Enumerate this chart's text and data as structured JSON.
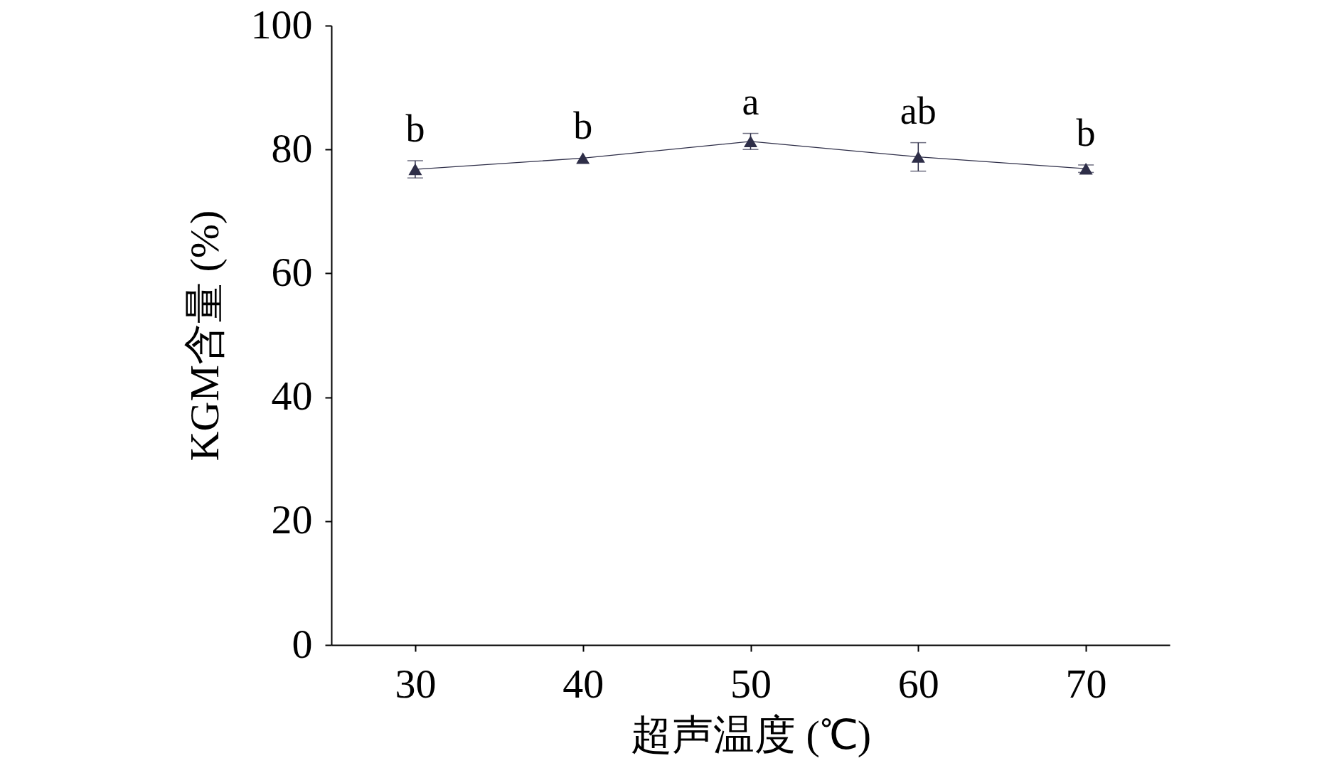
{
  "chart_data": {
    "type": "line",
    "xlabel": "超声温度 (℃)",
    "ylabel": "KGM含量 (%)",
    "x": [
      30,
      40,
      50,
      60,
      70
    ],
    "series": [
      {
        "color": "#2e2e48",
        "values": [
          76.8,
          78.6,
          81.3,
          78.8,
          76.9
        ],
        "errors": [
          1.4,
          null,
          1.3,
          2.3,
          0.6
        ]
      }
    ],
    "xlim": [
      25,
      75
    ],
    "xticks": [
      30,
      40,
      50,
      60,
      70
    ],
    "ylim": [
      0,
      100
    ],
    "yticks": [
      0,
      20,
      40,
      60,
      80,
      100
    ],
    "marker": "triangle",
    "line_style": "solid",
    "grid": false,
    "annotations": [
      {
        "text": "b",
        "x": 30,
        "y": 76.8
      },
      {
        "text": "b",
        "x": 40,
        "y": 78.6
      },
      {
        "text": "a",
        "x": 50,
        "y": 81.3
      },
      {
        "text": "ab",
        "x": 60,
        "y": 78.8
      },
      {
        "text": "b",
        "x": 70,
        "y": 76.9
      }
    ]
  }
}
